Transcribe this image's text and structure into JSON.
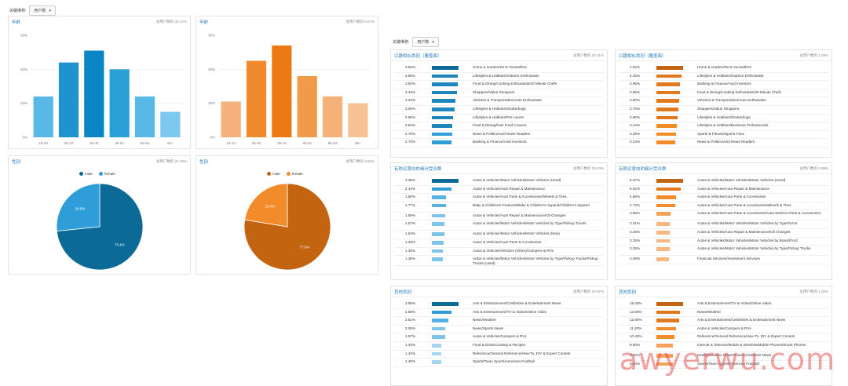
{
  "left_control": {
    "label": "关键维称:",
    "select": "用户数"
  },
  "right_control": {
    "label": "关键维称:",
    "select": "用户数"
  },
  "age_charts": [
    {
      "title": "年龄",
      "meta": "总用户数的 20.17%",
      "color": "#29a3db",
      "chart_data": {
        "type": "bar",
        "categories": [
          "18-24",
          "25-34",
          "35-44",
          "45-54",
          "55-64",
          "65+"
        ],
        "values": [
          12,
          22,
          25.5,
          20,
          12,
          7.5
        ],
        "yticks": [
          "30%",
          "20%",
          "10%",
          "0%"
        ],
        "ylim": [
          0,
          30
        ]
      }
    },
    {
      "title": "年龄",
      "meta": "总用户数的 0.67%",
      "color": "#f28c2b",
      "chart_data": {
        "type": "bar",
        "categories": [
          "18-24",
          "25-34",
          "35-44",
          "45-54",
          "55-64",
          "65+"
        ],
        "values": [
          10.5,
          22.5,
          27,
          18,
          12,
          10
        ],
        "yticks": [
          "30%",
          "20%",
          "10%",
          "0%"
        ],
        "ylim": [
          0,
          30
        ]
      }
    }
  ],
  "gender_charts": [
    {
      "title": "性别",
      "meta": "总用户数的 21.49%",
      "chart_data": {
        "type": "pie",
        "series": [
          {
            "name": "male",
            "value": 73.4,
            "label": "73.4%",
            "color": "#0b6a96"
          },
          {
            "name": "female",
            "value": 26.6,
            "label": "26.6%",
            "color": "#2f9ed8"
          }
        ]
      }
    },
    {
      "title": "性别",
      "meta": "总用户数的 0.66%",
      "chart_data": {
        "type": "pie",
        "series": [
          {
            "name": "male",
            "value": 77.6,
            "label": "77.6%",
            "color": "#c26410"
          },
          {
            "name": "female",
            "value": 22.4,
            "label": "22.4%",
            "color": "#f28c2b"
          }
        ]
      }
    }
  ],
  "lists": [
    {
      "title": "兴趣相似类别（覆盖面）",
      "meta": "总用户数的 22.31%",
      "palette": "blue",
      "rows": [
        {
          "pct": "3.65%",
          "v": 3.65,
          "label": "Home & Garden/Do-It-Yourselfers"
        },
        {
          "pct": "3.55%",
          "v": 3.55,
          "label": "Lifestyles & Hobbies/Outdoor Enthusiasts"
        },
        {
          "pct": "3.50%",
          "v": 3.5,
          "label": "Food & Dining/Cooking Enthusiasts/30 Minute Chefs"
        },
        {
          "pct": "3.42%",
          "v": 3.42,
          "label": "Shoppers/Value Shoppers"
        },
        {
          "pct": "3.23%",
          "v": 3.23,
          "label": "Vehicles & Transportation/Auto Enthusiasts"
        },
        {
          "pct": "3.06%",
          "v": 3.06,
          "label": "Lifestyles & Hobbies/Shutterbugs"
        },
        {
          "pct": "2.85%",
          "v": 2.85,
          "label": "Lifestyles & Hobbies/Pet Lovers"
        },
        {
          "pct": "2.84%",
          "v": 2.84,
          "label": "Food & Dining/Fast Food Cravers"
        },
        {
          "pct": "2.75%",
          "v": 2.75,
          "label": "News & Politics/Avid News Readers"
        },
        {
          "pct": "2.73%",
          "v": 2.73,
          "label": "Banking & Finance/Avid Investors"
        }
      ]
    },
    {
      "title": "兴趣相似类别（覆盖面）",
      "meta": "总用户数的 1.05%",
      "palette": "orange",
      "rows": [
        {
          "pct": "4.52%",
          "v": 4.52,
          "label": "Home & Garden/Do-It-Yourselfers"
        },
        {
          "pct": "4.25%",
          "v": 4.25,
          "label": "Lifestyles & Hobbies/Outdoor Enthusiasts"
        },
        {
          "pct": "3.95%",
          "v": 3.95,
          "label": "Banking & Finance/Avid Investors"
        },
        {
          "pct": "3.95%",
          "v": 3.95,
          "label": "Food & Dining/Cooking Enthusiasts/30 Minute Chefs"
        },
        {
          "pct": "3.80%",
          "v": 3.8,
          "label": "Vehicles & Transportation/Auto Enthusiasts"
        },
        {
          "pct": "3.75%",
          "v": 3.75,
          "label": "Shoppers/Value Shoppers"
        },
        {
          "pct": "3.60%",
          "v": 3.6,
          "label": "Lifestyles & Hobbies/Shutterbugs"
        },
        {
          "pct": "3.44%",
          "v": 3.44,
          "label": "Lifestyles & Hobbies/Business Professionals"
        },
        {
          "pct": "3.29%",
          "v": 3.29,
          "label": "Sports & Fitness/Sports Fans"
        },
        {
          "pct": "3.24%",
          "v": 3.24,
          "label": "News & Politics/Avid News Readers"
        }
      ]
    },
    {
      "title": "有购买意向的细分受众群",
      "meta": "总用户数的 20.04%",
      "palette": "blue",
      "rows": [
        {
          "pct": "3.36%",
          "v": 3.36,
          "label": "Autos & Vehicles/Motor Vehicles/Motor Vehicles (Used)"
        },
        {
          "pct": "2.44%",
          "v": 2.44,
          "label": "Autos & Vehicles/Auto Repair & Maintenance"
        },
        {
          "pct": "1.80%",
          "v": 1.8,
          "label": "Autos & Vehicles/Auto Parts & Accessories/Wheels & Tires"
        },
        {
          "pct": "1.77%",
          "v": 1.77,
          "label": "Baby & Children's Products/Baby & Children's Apparel/Children's Apparel"
        },
        {
          "pct": "1.69%",
          "v": 1.69,
          "label": "Autos & Vehicles/Auto Repair & Maintenance/Oil Changes"
        },
        {
          "pct": "1.57%",
          "v": 1.57,
          "label": "Autos & Vehicles/Motor Vehicles/Motor Vehicles by Type/Pickup Trucks"
        },
        {
          "pct": "1.54%",
          "v": 1.54,
          "label": "Autos & Vehicles/Motor Vehicles/Motor Vehicles (New)"
        },
        {
          "pct": "1.49%",
          "v": 1.49,
          "label": "Autos & Vehicles/Auto Parts & Accessories"
        },
        {
          "pct": "1.42%",
          "v": 1.42,
          "label": "Autos & Vehicles/Vehicles (Other)/Campers & RVs"
        },
        {
          "pct": "1.38%",
          "v": 1.38,
          "label": "Autos & Vehicles/Motor Vehicles/Motor Vehicles by Type/Pickup Trucks/Pickup Trucks (Used)"
        }
      ]
    },
    {
      "title": "有购买意向的细分受众群",
      "meta": "总用户数的 0.98%",
      "palette": "orange",
      "rows": [
        {
          "pct": "6.67%",
          "v": 6.67,
          "label": "Autos & Vehicles/Motor Vehicles/Motor Vehicles (Used)"
        },
        {
          "pct": "6.02%",
          "v": 6.02,
          "label": "Autos & Vehicles/Auto Repair & Maintenance"
        },
        {
          "pct": "4.88%",
          "v": 4.88,
          "label": "Autos & Vehicles/Auto Parts & Accessories"
        },
        {
          "pct": "4.72%",
          "v": 4.72,
          "label": "Autos & Vehicles/Auto Parts & Accessories/Wheels & Tires"
        },
        {
          "pct": "3.58%",
          "v": 3.58,
          "label": "Autos & Vehicles/Auto Parts & Accessories/Auto Exterior Parts & Accessories"
        },
        {
          "pct": "3.41%",
          "v": 3.41,
          "label": "Autos & Vehicles/Motor Vehicles/Motor Vehicles by Type/SUVs"
        },
        {
          "pct": "3.25%",
          "v": 3.25,
          "label": "Autos & Vehicles/Auto Repair & Maintenance/Oil Changes"
        },
        {
          "pct": "3.25%",
          "v": 3.25,
          "label": "Autos & Vehicles/Motor Vehicles/Motor Vehicles by Brand/Ford"
        },
        {
          "pct": "3.25%",
          "v": 3.25,
          "label": "Autos & Vehicles/Motor Vehicles/Motor Vehicles by Type/Pickup Trucks"
        },
        {
          "pct": "3.09%",
          "v": 3.09,
          "label": "Financial Services/Investment Services"
        }
      ]
    },
    {
      "title": "其他类别",
      "meta": "总用户数的 20.97%",
      "palette": "blue",
      "rows": [
        {
          "pct": "3.99%",
          "v": 3.99,
          "label": "Arts & Entertainment/Celebrities & Entertainment News"
        },
        {
          "pct": "2.88%",
          "v": 2.88,
          "label": "Arts & Entertainment/TV & Video/Online Video"
        },
        {
          "pct": "2.51%",
          "v": 2.51,
          "label": "News/Weather"
        },
        {
          "pct": "2.05%",
          "v": 2.05,
          "label": "News/Sports News"
        },
        {
          "pct": "1.97%",
          "v": 1.97,
          "label": "Autos & Vehicles/Campers & RVs"
        },
        {
          "pct": "1.43%",
          "v": 1.43,
          "label": "Food & Drink/Cooking & Recipes"
        },
        {
          "pct": "1.42%",
          "v": 1.42,
          "label": "Reference/General Reference/How-To, DIY & Expert Content"
        },
        {
          "pct": "1.40%",
          "v": 1.4,
          "label": "Sports/Team Sports/American Football"
        }
      ]
    },
    {
      "title": "其他类别",
      "meta": "总用户数的 1.00%",
      "palette": "orange",
      "rows": [
        {
          "pct": "15.20%",
          "v": 15.2,
          "label": "Arts & Entertainment/TV & Video/Online Video"
        },
        {
          "pct": "13.60%",
          "v": 13.6,
          "label": "News/Weather"
        },
        {
          "pct": "12.80%",
          "v": 12.8,
          "label": "Arts & Entertainment/Celebrities & Entertainment News"
        },
        {
          "pct": "11.20%",
          "v": 11.2,
          "label": "Autos & Vehicles/Campers & RVs"
        },
        {
          "pct": "10.40%",
          "v": 10.4,
          "label": "Reference/General Reference/How-To, DIY & Expert Content"
        },
        {
          "pct": "9.60%",
          "v": 9.6,
          "label": "Internet & Telecom/Mobile & Wireless/Mobile Phones/Smart Phones"
        },
        {
          "pct": "9.60%",
          "v": 9.6,
          "label": "News/Business News/Financial Markets News"
        },
        {
          "pct": "9.60%",
          "v": 9.6,
          "label": "Sports/Team Sports/American Football"
        }
      ]
    }
  ],
  "palettes": {
    "blue": [
      "#0b6a96",
      "#1f86bd",
      "#2f9ed8",
      "#55b2e2",
      "#7cc4ea",
      "#a4d6f1"
    ],
    "orange": [
      "#c26410",
      "#e07a1c",
      "#f28c2b",
      "#f4a259",
      "#f6b880",
      "#f9d0a8"
    ]
  },
  "watermark": "awyerwu.com"
}
